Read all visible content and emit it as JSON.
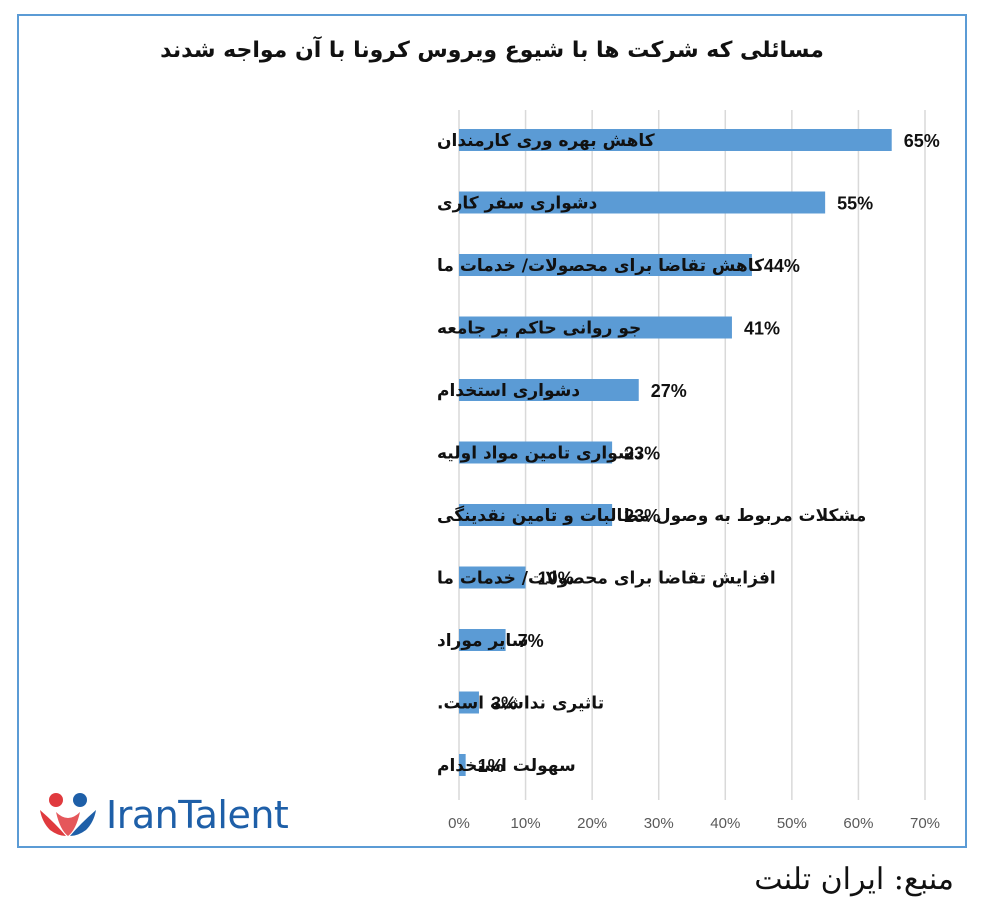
{
  "chart_data": {
    "type": "bar",
    "orientation": "horizontal",
    "title": "مسائلی که شرکت ها با شیوع ویروس کرونا با آن مواجه شدند",
    "categories": [
      "کاهش بهره وری کارمندان",
      "دشواری سفر کاری",
      "کاهش تقاضا برای محصولات/ خدمات ما",
      "جو روانی حاکم بر جامعه",
      "دشواری استخدام",
      "دشواری تامین مواد اولیه",
      "مشکلات مربوط به وصول مطالبات و تامین نقدینگی",
      "افزایش تقاضا برای محصولات/ خدمات ما",
      "سایر موراد",
      "تاثیری نداشته است.",
      "سهولت استخدام"
    ],
    "values": [
      65,
      55,
      44,
      41,
      27,
      23,
      23,
      10,
      7,
      3,
      1
    ],
    "value_labels": [
      "65%",
      "55%",
      "44%",
      "41%",
      "27%",
      "23%",
      "23%",
      "10%",
      "7%",
      "3%",
      "1%"
    ],
    "xlim": [
      0,
      70
    ],
    "x_ticks": [
      "0%",
      "10%",
      "20%",
      "30%",
      "40%",
      "50%",
      "60%",
      "70%"
    ],
    "grid": true,
    "bar_color": "#5b9bd5",
    "grid_color": "#d9d9d9",
    "frame_color": "#5b9bd5"
  },
  "logo": {
    "text": "IranTalent",
    "color": "#1e5fa8",
    "accent": "#e03a3e"
  },
  "source": "منبع: ایران تلنت"
}
